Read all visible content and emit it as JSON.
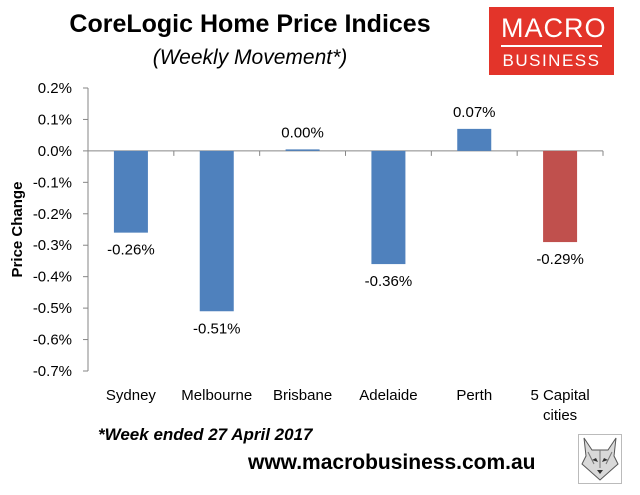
{
  "header": {
    "title": "CoreLogic Home Price Indices",
    "subtitle": "(Weekly Movement*)"
  },
  "logo": {
    "line1": "MACRO",
    "line2": "BUSINESS"
  },
  "footer": {
    "footnote": "*Week ended 27 April 2017",
    "website": "www.macrobusiness.com.au"
  },
  "icons": {
    "wolf": "wolf-head-icon"
  },
  "chart_data": {
    "type": "bar",
    "title": "CoreLogic Home Price Indices",
    "subtitle": "(Weekly Movement*)",
    "xlabel": "",
    "ylabel": "Price Change",
    "categories": [
      "Sydney",
      "Melbourne",
      "Brisbane",
      "Adelaide",
      "Perth",
      "5 Capital cities"
    ],
    "category_lines": [
      [
        "Sydney"
      ],
      [
        "Melbourne"
      ],
      [
        "Brisbane"
      ],
      [
        "Adelaide"
      ],
      [
        "Perth"
      ],
      [
        "5 Capital",
        "cities"
      ]
    ],
    "values": [
      -0.26,
      -0.51,
      0.0,
      -0.36,
      0.07,
      -0.29
    ],
    "value_labels": [
      "-0.26%",
      "-0.51%",
      "0.00%",
      "-0.36%",
      "0.07%",
      "-0.29%"
    ],
    "bar_colors": [
      "#4f81bd",
      "#4f81bd",
      "#4f81bd",
      "#4f81bd",
      "#4f81bd",
      "#c0504d"
    ],
    "ylim": [
      -0.7,
      0.2
    ],
    "yticks": [
      0.2,
      0.1,
      0.0,
      -0.1,
      -0.2,
      -0.3,
      -0.4,
      -0.5,
      -0.6,
      -0.7
    ],
    "ytick_labels": [
      "0.2%",
      "0.1%",
      "0.0%",
      "-0.1%",
      "-0.2%",
      "-0.3%",
      "-0.4%",
      "-0.5%",
      "-0.6%",
      "-0.7%"
    ],
    "grid": false,
    "legend": "none"
  }
}
